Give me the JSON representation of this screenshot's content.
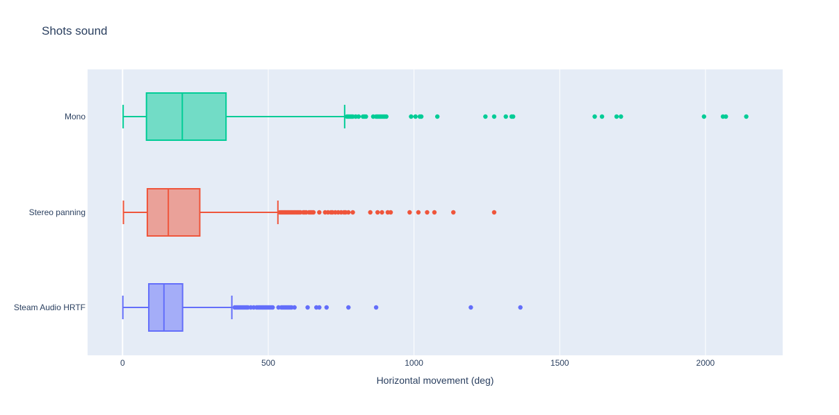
{
  "chart_data": {
    "type": "box",
    "orientation": "horizontal",
    "title": "Shots sound",
    "xlabel": "Horizontal movement (deg)",
    "ylabel": "",
    "xlim": [
      -120,
      2265
    ],
    "xticks": [
      0,
      500,
      1000,
      1500,
      2000
    ],
    "grid": true,
    "legend": "none",
    "background": "#e5ecf6",
    "series": [
      {
        "name": "Mono",
        "color": "#00cc96",
        "min": 2,
        "q1": 82,
        "median": 205,
        "q3": 355,
        "max": 762,
        "outliers": [
          770,
          775,
          780,
          785,
          790,
          800,
          810,
          825,
          830,
          835,
          860,
          870,
          875,
          880,
          885,
          890,
          895,
          900,
          905,
          990,
          1005,
          1020,
          1025,
          1080,
          1245,
          1275,
          1315,
          1335,
          1340,
          1620,
          1645,
          1695,
          1710,
          1995,
          2060,
          2070,
          2140
        ]
      },
      {
        "name": "Stereo panning",
        "color": "#ef553b",
        "min": 3,
        "q1": 85,
        "median": 157,
        "q3": 265,
        "max": 533,
        "outliers": [
          540,
          545,
          550,
          555,
          560,
          565,
          570,
          575,
          580,
          585,
          590,
          595,
          600,
          605,
          610,
          620,
          625,
          630,
          640,
          645,
          650,
          655,
          675,
          695,
          705,
          715,
          720,
          730,
          740,
          750,
          760,
          765,
          775,
          790,
          850,
          875,
          890,
          910,
          920,
          985,
          1015,
          1045,
          1070,
          1135,
          1275
        ]
      },
      {
        "name": "Steam Audio HRTF",
        "color": "#636efa",
        "min": 1,
        "q1": 90,
        "median": 142,
        "q3": 206,
        "max": 375,
        "outliers": [
          385,
          390,
          395,
          400,
          405,
          410,
          415,
          420,
          425,
          430,
          440,
          450,
          460,
          465,
          470,
          475,
          480,
          485,
          490,
          495,
          500,
          505,
          510,
          515,
          535,
          545,
          550,
          555,
          560,
          565,
          570,
          575,
          580,
          590,
          635,
          665,
          675,
          700,
          775,
          870,
          1195,
          1365
        ]
      }
    ]
  }
}
